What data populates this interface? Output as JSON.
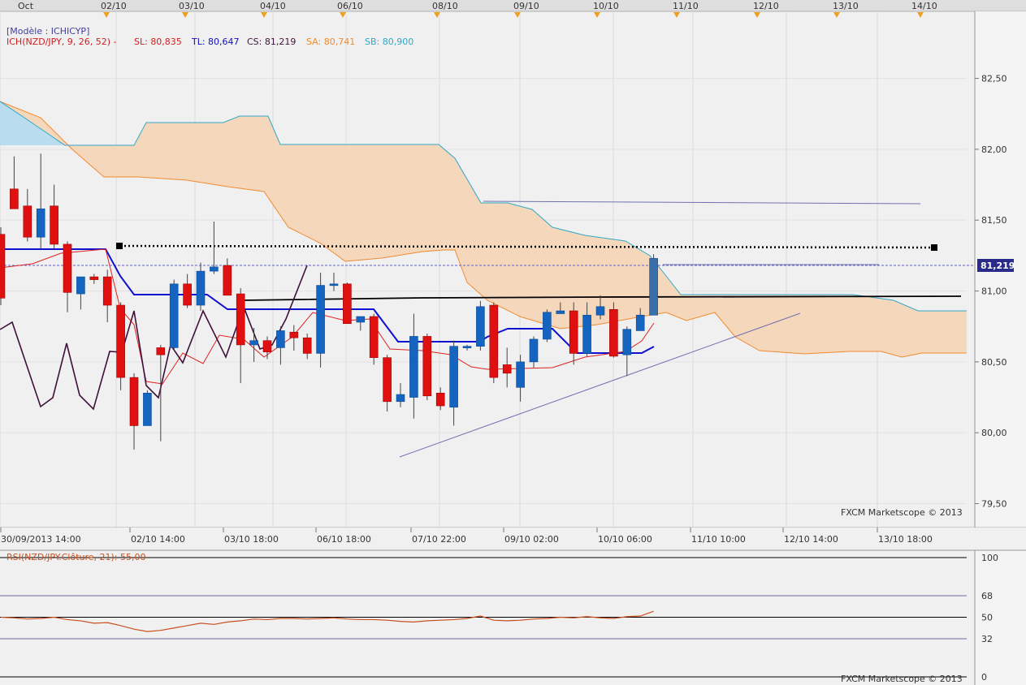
{
  "top_date_labels": [
    "Oct",
    "02/10",
    "03/10",
    "04/10",
    "06/10",
    "08/10",
    "09/10",
    "10/10",
    "11/10",
    "12/10",
    "13/10",
    "14/10"
  ],
  "model_label": "[Modèle : ICHICYP]",
  "legend": {
    "name": "ICH(NZD/JPY, 9, 26, 52) -",
    "sl": "SL: 80,835",
    "tl": "TL: 80,647",
    "cs": "CS: 81,219",
    "sa": "SA: 80,741",
    "sb": "SB: 80,900"
  },
  "price_axis_labels": [
    "82,50",
    "82,00",
    "81,50",
    "81,00",
    "80,50",
    "80,00",
    "79,50"
  ],
  "current_price_label": "81,219",
  "bottom_date_labels": [
    "30/09/2013 14:00",
    "02/10 14:00",
    "03/10 18:00",
    "06/10 18:00",
    "07/10 22:00",
    "09/10 02:00",
    "10/10 06:00",
    "11/10 10:00",
    "12/10 14:00",
    "13/10 18:00"
  ],
  "watermark": "FXCM Marketscope © 2013",
  "rsi_label": "RSI(NZD/JPY.Clôture, 21): 55,00",
  "rsi_axis_labels": [
    "100",
    "68",
    "50",
    "32",
    "0"
  ],
  "colors": {
    "background": "#f0f0f0",
    "bull": "#1565c0",
    "bear": "#e01010",
    "tenkan": "#e02020",
    "kijun": "#1010d0",
    "chikou": "#40103a",
    "senkou_a": "#f08a30",
    "senkou_b": "#30a8c8",
    "cloud_bear": "#f5d5b5",
    "cloud_bull": "#b9dcee",
    "rsi_line": "#c85020"
  },
  "chart_data": [
    {
      "type": "candlestick",
      "title": "",
      "ylabel": "",
      "ylim": [
        79.4,
        82.95
      ],
      "candles": [
        {
          "o": 81.4,
          "h": 81.45,
          "l": 80.9,
          "c": 80.95
        },
        {
          "o": 81.72,
          "h": 81.95,
          "l": 81.6,
          "c": 81.58
        },
        {
          "o": 81.6,
          "h": 81.72,
          "l": 81.35,
          "c": 81.38
        },
        {
          "o": 81.38,
          "h": 81.97,
          "l": 81.3,
          "c": 81.58
        },
        {
          "o": 81.6,
          "h": 81.75,
          "l": 81.3,
          "c": 81.33
        },
        {
          "o": 81.33,
          "h": 81.35,
          "l": 80.85,
          "c": 80.99
        },
        {
          "o": 80.98,
          "h": 81.1,
          "l": 80.87,
          "c": 81.1
        },
        {
          "o": 81.1,
          "h": 81.12,
          "l": 81.05,
          "c": 81.08
        },
        {
          "o": 81.1,
          "h": 81.15,
          "l": 80.78,
          "c": 80.9
        },
        {
          "o": 80.9,
          "h": 80.92,
          "l": 80.3,
          "c": 80.39
        },
        {
          "o": 80.39,
          "h": 80.42,
          "l": 79.88,
          "c": 80.05
        },
        {
          "o": 80.05,
          "h": 80.3,
          "l": 80.05,
          "c": 80.28
        },
        {
          "o": 80.6,
          "h": 80.62,
          "l": 79.94,
          "c": 80.55
        },
        {
          "o": 80.6,
          "h": 81.08,
          "l": 80.58,
          "c": 81.05
        },
        {
          "o": 81.05,
          "h": 81.12,
          "l": 80.88,
          "c": 80.9
        },
        {
          "o": 80.9,
          "h": 81.2,
          "l": 80.86,
          "c": 81.14
        },
        {
          "o": 81.14,
          "h": 81.49,
          "l": 81.12,
          "c": 81.17
        },
        {
          "o": 81.18,
          "h": 81.23,
          "l": 80.98,
          "c": 80.97
        },
        {
          "o": 80.98,
          "h": 81.02,
          "l": 80.35,
          "c": 80.62
        },
        {
          "o": 80.62,
          "h": 80.74,
          "l": 80.5,
          "c": 80.65
        },
        {
          "o": 80.65,
          "h": 80.68,
          "l": 80.52,
          "c": 80.57
        },
        {
          "o": 80.6,
          "h": 80.75,
          "l": 80.48,
          "c": 80.72
        },
        {
          "o": 80.71,
          "h": 80.76,
          "l": 80.58,
          "c": 80.67
        },
        {
          "o": 80.67,
          "h": 80.7,
          "l": 80.52,
          "c": 80.56
        },
        {
          "o": 80.56,
          "h": 81.13,
          "l": 80.46,
          "c": 81.04
        },
        {
          "o": 81.04,
          "h": 81.13,
          "l": 81.0,
          "c": 81.05
        },
        {
          "o": 81.05,
          "h": 81.06,
          "l": 80.77,
          "c": 80.77
        },
        {
          "o": 80.78,
          "h": 80.82,
          "l": 80.72,
          "c": 80.82
        },
        {
          "o": 80.82,
          "h": 80.84,
          "l": 80.48,
          "c": 80.53
        },
        {
          "o": 80.53,
          "h": 80.55,
          "l": 80.15,
          "c": 80.22
        },
        {
          "o": 80.22,
          "h": 80.35,
          "l": 80.18,
          "c": 80.27
        },
        {
          "o": 80.25,
          "h": 80.84,
          "l": 80.1,
          "c": 80.68
        },
        {
          "o": 80.68,
          "h": 80.7,
          "l": 80.23,
          "c": 80.26
        },
        {
          "o": 80.28,
          "h": 80.32,
          "l": 80.16,
          "c": 80.19
        },
        {
          "o": 80.18,
          "h": 80.65,
          "l": 80.05,
          "c": 80.61
        },
        {
          "o": 80.6,
          "h": 80.62,
          "l": 80.58,
          "c": 80.61
        },
        {
          "o": 80.61,
          "h": 80.93,
          "l": 80.58,
          "c": 80.89
        },
        {
          "o": 80.9,
          "h": 80.92,
          "l": 80.35,
          "c": 80.39
        },
        {
          "o": 80.48,
          "h": 80.6,
          "l": 80.32,
          "c": 80.42
        },
        {
          "o": 80.32,
          "h": 80.55,
          "l": 80.22,
          "c": 80.5
        },
        {
          "o": 80.5,
          "h": 80.68,
          "l": 80.46,
          "c": 80.66
        },
        {
          "o": 80.66,
          "h": 80.87,
          "l": 80.64,
          "c": 80.85
        },
        {
          "o": 80.84,
          "h": 80.92,
          "l": 80.84,
          "c": 80.86
        },
        {
          "o": 80.86,
          "h": 80.92,
          "l": 80.48,
          "c": 80.56
        },
        {
          "o": 80.56,
          "h": 80.92,
          "l": 80.54,
          "c": 80.83
        },
        {
          "o": 80.83,
          "h": 80.97,
          "l": 80.8,
          "c": 80.89
        },
        {
          "o": 80.87,
          "h": 80.92,
          "l": 80.53,
          "c": 80.54
        },
        {
          "o": 80.55,
          "h": 80.75,
          "l": 80.4,
          "c": 80.73
        },
        {
          "o": 80.72,
          "h": 80.88,
          "l": 80.72,
          "c": 80.83
        },
        {
          "o": 80.83,
          "h": 81.26,
          "l": 80.83,
          "c": 81.23
        }
      ]
    },
    {
      "type": "line",
      "title": "",
      "ylabel": "",
      "ylim": [
        0,
        100
      ],
      "series": [
        {
          "name": "RSI(NZD/JPY.Clôture, 21): 55,00",
          "values": [
            50,
            49.5,
            48.5,
            49,
            50,
            48,
            47,
            45,
            45.5,
            43,
            40,
            38,
            39,
            41,
            43,
            45,
            44,
            46,
            47,
            48.5,
            48,
            49,
            49,
            48.5,
            49,
            49.5,
            48.5,
            48,
            48,
            47.5,
            46.5,
            46,
            47,
            47.5,
            48,
            49,
            51,
            47.5,
            47,
            47.5,
            48.5,
            49,
            50,
            49.5,
            50.5,
            49.5,
            49,
            50.5,
            51,
            55
          ]
        }
      ],
      "reference_lines": [
        68,
        50,
        32
      ]
    }
  ]
}
